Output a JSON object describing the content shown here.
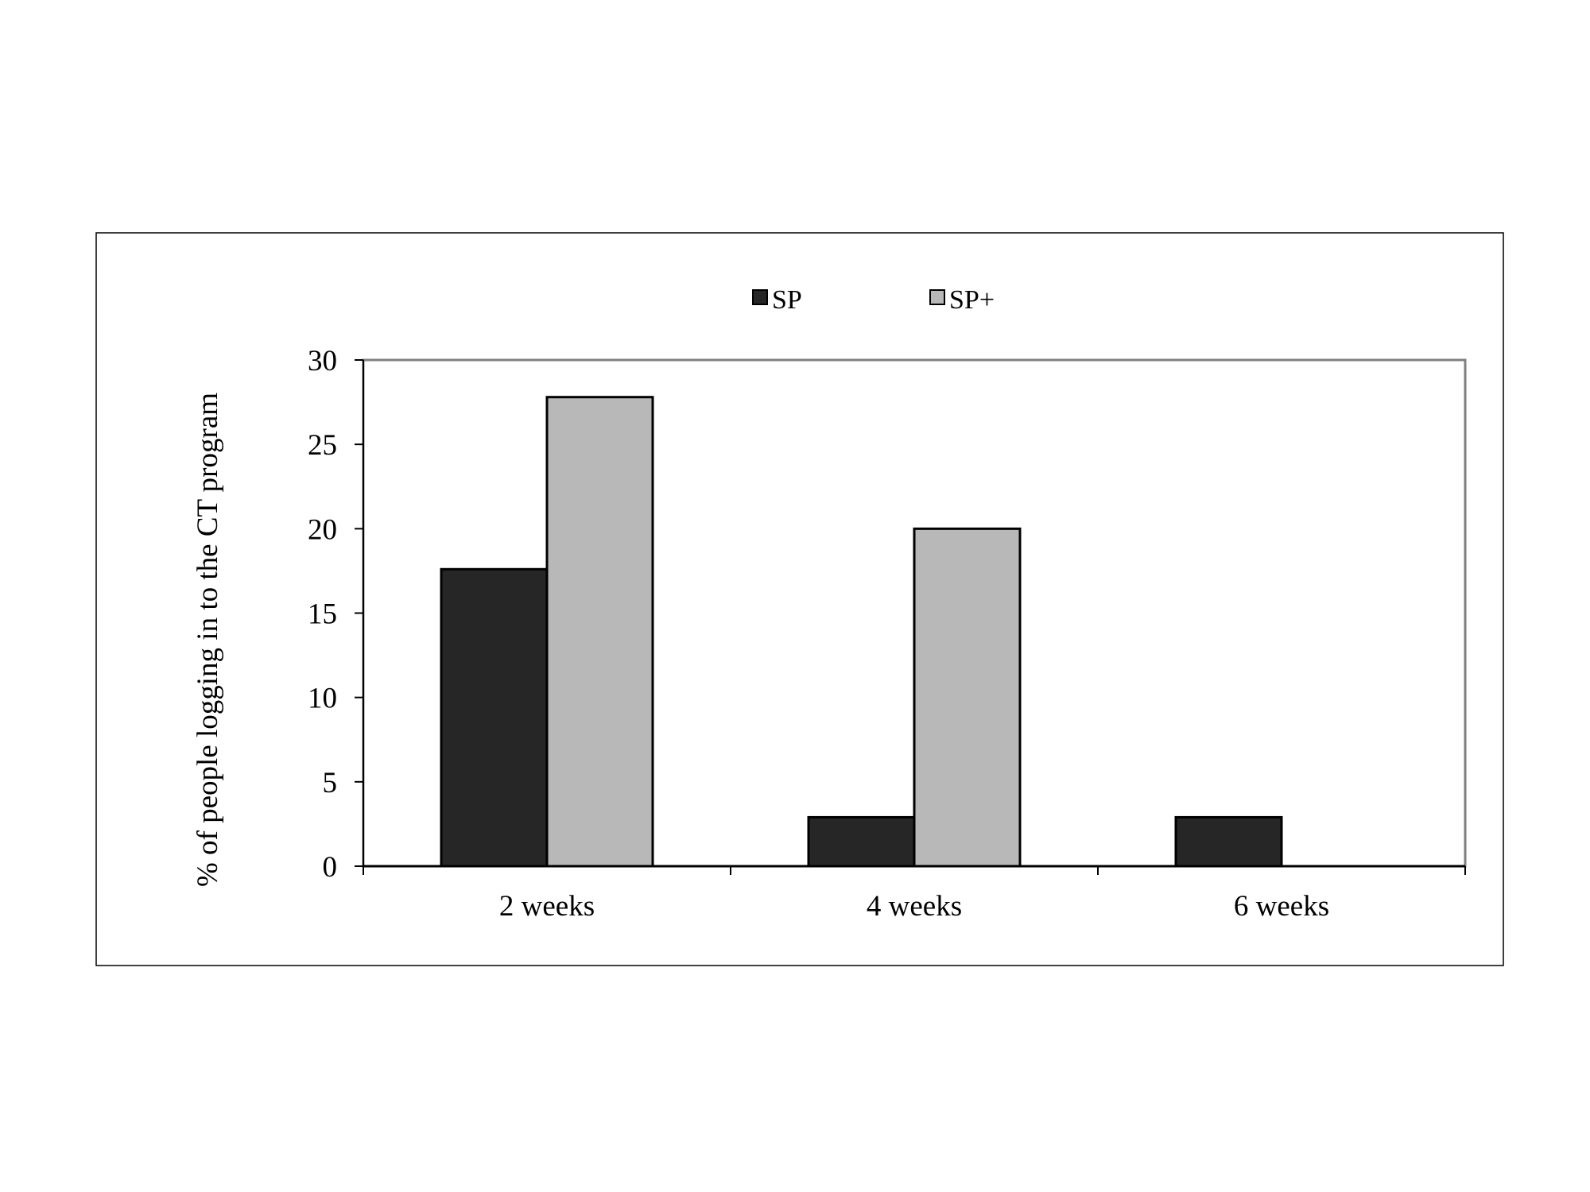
{
  "chart_data": {
    "type": "bar",
    "title": "",
    "xlabel": "",
    "ylabel": "% of people logging in to the CT program",
    "categories": [
      "2 weeks",
      "4 weeks",
      "6 weeks"
    ],
    "series": [
      {
        "name": "SP",
        "values": [
          17.6,
          2.9,
          2.9
        ],
        "color": "#262626"
      },
      {
        "name": "SP+",
        "values": [
          27.8,
          20,
          0
        ],
        "color": "#b8b8b8"
      }
    ],
    "ylim": [
      0,
      30
    ],
    "yticks": [
      "0",
      "5",
      "10",
      "15",
      "20",
      "25",
      "30"
    ],
    "grid": false,
    "legend_position": "top-center"
  }
}
